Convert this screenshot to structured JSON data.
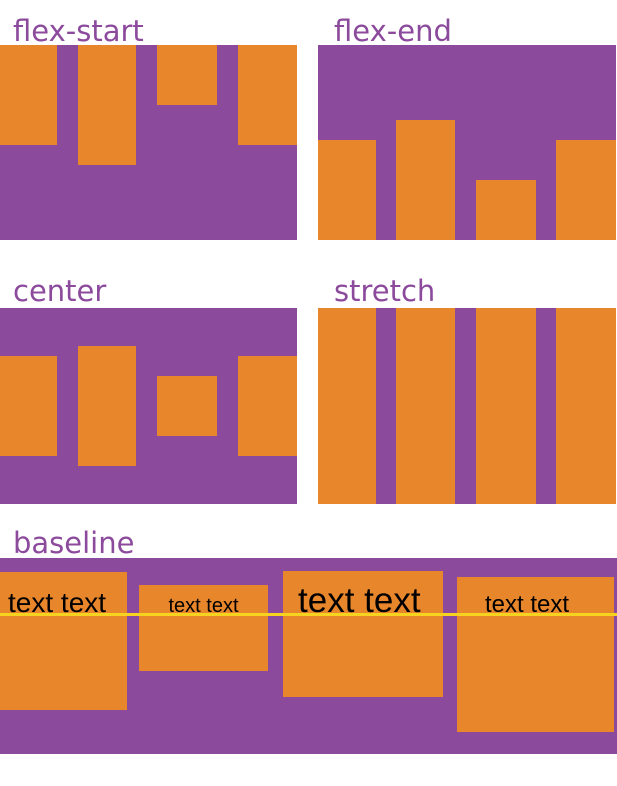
{
  "colors": {
    "container_purple": "#8c4a9c",
    "item_orange": "#e8862c",
    "baseline_yellow": "#f5d31f",
    "label_text": "#8c4a9c",
    "box_text": "#000000"
  },
  "panels": [
    {
      "label": "flex-start",
      "alignment": "flex-start"
    },
    {
      "label": "flex-end",
      "alignment": "flex-end"
    },
    {
      "label": "center",
      "alignment": "center"
    },
    {
      "label": "stretch",
      "alignment": "stretch"
    },
    {
      "label": "baseline",
      "alignment": "baseline",
      "items": [
        {
          "text": "text text"
        },
        {
          "text": "text text"
        },
        {
          "text": "text text"
        },
        {
          "text": "text text"
        }
      ]
    }
  ]
}
